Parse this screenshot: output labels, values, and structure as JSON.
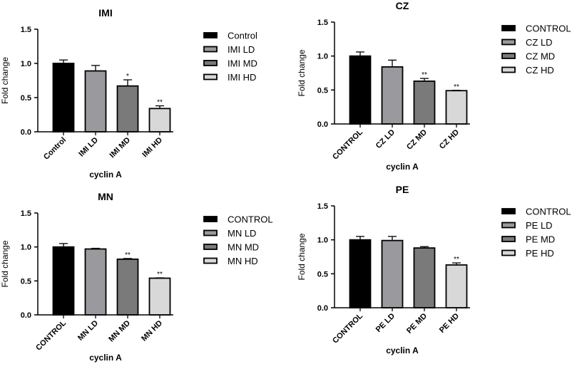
{
  "chart_data": [
    {
      "type": "bar",
      "title": "IMI",
      "xlabel": "cyclin A",
      "ylabel": "Fold change",
      "ylim": [
        0,
        1.5
      ],
      "yticks": [
        "0.0",
        "0.5",
        "1.0",
        "1.5"
      ],
      "categories": [
        "Control",
        "IMI LD",
        "IMI MD",
        "IMI HD"
      ],
      "values": [
        1.0,
        0.89,
        0.67,
        0.34
      ],
      "errors": [
        0.05,
        0.08,
        0.09,
        0.04
      ],
      "significance": [
        "",
        "",
        "*",
        "**"
      ],
      "legend": [
        "Control",
        "IMI LD",
        "IMI MD",
        "IMI HD"
      ],
      "legend_position": "right"
    },
    {
      "type": "bar",
      "title": "CZ",
      "xlabel": "cyclin A",
      "ylabel": "Fold change",
      "ylim": [
        0,
        1.5
      ],
      "yticks": [
        "0.0",
        "0.5",
        "1.0",
        "1.5"
      ],
      "categories": [
        "CONTROL",
        "CZ LD",
        "CZ MD",
        "CZ HD"
      ],
      "values": [
        1.0,
        0.84,
        0.63,
        0.49
      ],
      "errors": [
        0.06,
        0.1,
        0.04,
        0.005
      ],
      "significance": [
        "",
        "",
        "**",
        "**"
      ],
      "legend": [
        "CONTROL",
        "CZ LD",
        "CZ MD",
        "CZ HD"
      ],
      "legend_position": "right"
    },
    {
      "type": "bar",
      "title": "MN",
      "xlabel": "cyclin A",
      "ylabel": "Fold change",
      "ylim": [
        0,
        1.5
      ],
      "yticks": [
        "0.0",
        "0.5",
        "1.0",
        "1.5"
      ],
      "categories": [
        "CONTROL",
        "MN LD",
        "MN MD",
        "MN HD"
      ],
      "values": [
        1.0,
        0.97,
        0.82,
        0.54
      ],
      "errors": [
        0.05,
        0.01,
        0.01,
        0.005
      ],
      "significance": [
        "",
        "",
        "**",
        "**"
      ],
      "legend": [
        "CONTROL",
        "MN LD",
        "MN MD",
        "MN HD"
      ],
      "legend_position": "right"
    },
    {
      "type": "bar",
      "title": "PE",
      "xlabel": "cyclin A",
      "ylabel": "Fold change",
      "ylim": [
        0,
        1.5
      ],
      "yticks": [
        "0.0",
        "0.5",
        "1.0",
        "1.5"
      ],
      "categories": [
        "CONTROL",
        "PE LD",
        "PE MD",
        "PE HD"
      ],
      "values": [
        1.0,
        0.99,
        0.88,
        0.63
      ],
      "errors": [
        0.05,
        0.06,
        0.02,
        0.03
      ],
      "significance": [
        "",
        "",
        "",
        "**"
      ],
      "legend": [
        "CONTROL",
        "PE LD",
        "PE MD",
        "PE HD"
      ],
      "legend_position": "right"
    }
  ],
  "colors": [
    "#000000",
    "#9a9a9e",
    "#7a7a7a",
    "#d8d8d8"
  ]
}
